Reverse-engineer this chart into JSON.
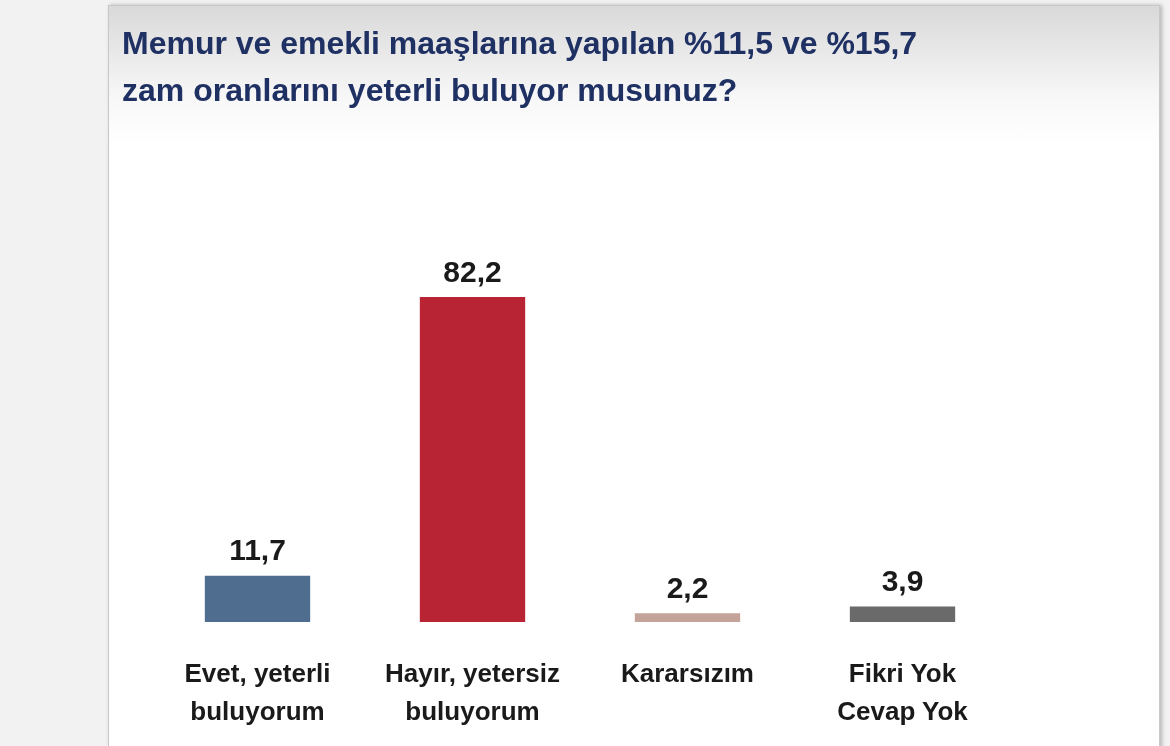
{
  "chart_data": {
    "type": "bar",
    "title": "Memur ve emekli maaşlarına yapılan %11,5 ve %15,7 zam oranlarını yeterli buluyor musunuz?",
    "categories": [
      "Evet, yeterli\nbuluyorum",
      "Hayır, yetersiz\nbuluyorum",
      "Kararsızım",
      "Fikri Yok\nCevap Yok"
    ],
    "values": [
      11.7,
      82.2,
      2.2,
      3.9
    ],
    "colors": [
      "#4f6d8f",
      "#b82434",
      "#c4a49a",
      "#6a6a6a"
    ],
    "value_labels": [
      "11,7",
      "82,2",
      "2,2",
      "3,9"
    ]
  }
}
